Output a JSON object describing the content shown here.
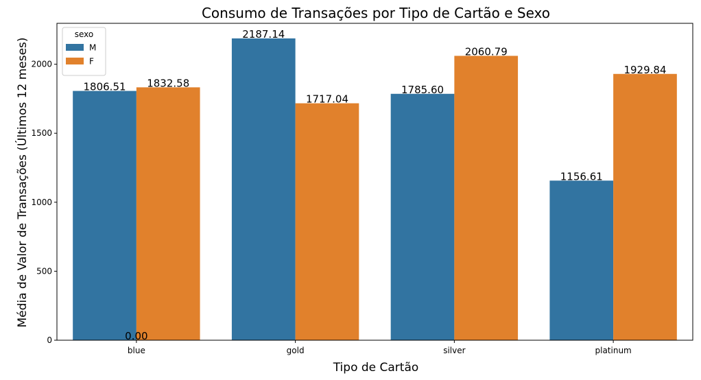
{
  "chart_data": {
    "type": "bar",
    "title": "Consumo de Transações por Tipo de Cartão e Sexo",
    "xlabel": "Tipo de Cartão",
    "ylabel": "Média de Valor de Transações (Últimos 12 meses)",
    "categories": [
      "blue",
      "gold",
      "silver",
      "platinum"
    ],
    "series": [
      {
        "name": "M",
        "color": "#3274a1",
        "values": [
          1806.51,
          2187.14,
          1785.6,
          1156.61
        ],
        "labels": [
          "1806.51",
          "2187.14",
          "1785.60",
          "1156.61"
        ]
      },
      {
        "name": "F",
        "color": "#e1812c",
        "values": [
          1832.58,
          1717.04,
          2060.79,
          1929.84
        ],
        "labels": [
          "1832.58",
          "1717.04",
          "2060.79",
          "1929.84"
        ]
      }
    ],
    "extra_annotation": {
      "text": "0.00",
      "category": "blue",
      "value": 0
    },
    "yticks": [
      0,
      500,
      1000,
      1500,
      2000
    ],
    "ytick_labels": [
      "0",
      "500",
      "1000",
      "1500",
      "2000"
    ],
    "ylim": [
      0,
      2296.5
    ],
    "grid": false,
    "legend": {
      "title": "sexo",
      "position": "top-left"
    }
  }
}
